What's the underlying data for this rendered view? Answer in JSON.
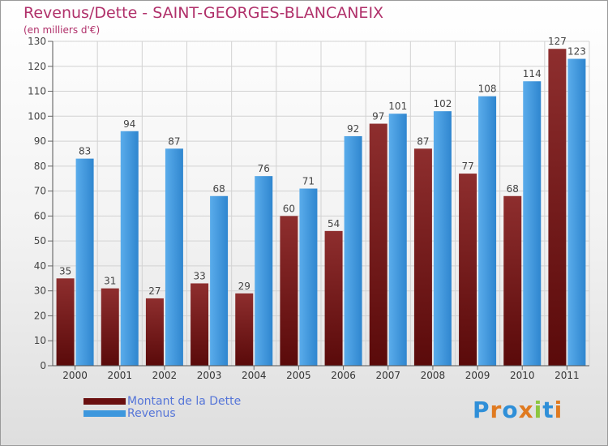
{
  "chart_data": {
    "type": "bar",
    "title": "Revenus/Dette - SAINT-GEORGES-BLANCANEIX",
    "subtitle": "(en milliers d'€)",
    "categories": [
      "2000",
      "2001",
      "2002",
      "2003",
      "2004",
      "2005",
      "2006",
      "2007",
      "2008",
      "2009",
      "2010",
      "2011"
    ],
    "series": [
      {
        "name": "Montant de la Dette",
        "color": "#7a1a1a",
        "values": [
          35,
          31,
          27,
          33,
          29,
          60,
          54,
          97,
          87,
          77,
          68,
          127
        ]
      },
      {
        "name": "Revenus",
        "color": "#3d97dd",
        "values": [
          83,
          94,
          87,
          68,
          76,
          71,
          92,
          101,
          102,
          108,
          114,
          123
        ]
      }
    ],
    "ylim": [
      0,
      130
    ],
    "yticks": [
      0,
      10,
      20,
      30,
      40,
      50,
      60,
      70,
      80,
      90,
      100,
      110,
      120,
      130
    ],
    "xlabel": "",
    "ylabel": "",
    "grid": true,
    "legend_position": "bottom-left"
  },
  "logo": {
    "letters": [
      {
        "char": "P",
        "color": "#2f8fd8"
      },
      {
        "char": "r",
        "color": "#e07a20"
      },
      {
        "char": "o",
        "color": "#2f8fd8"
      },
      {
        "char": "x",
        "color": "#e07a20"
      },
      {
        "char": "i",
        "color": "#8cc63f"
      },
      {
        "char": "t",
        "color": "#2f8fd8"
      },
      {
        "char": "i",
        "color": "#e07a20"
      }
    ]
  }
}
